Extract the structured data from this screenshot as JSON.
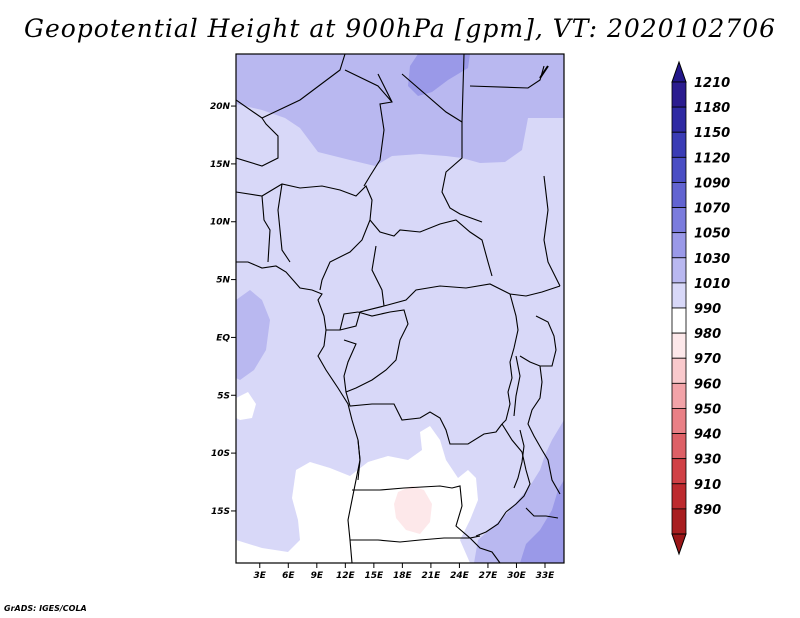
{
  "title": "Geopotential Height at 900hPa [gpm], VT: 2020102706",
  "credit": "GrADS: IGES/COLA",
  "map": {
    "lat_range": [
      -19.5,
      24.5
    ],
    "lon_range": [
      0.5,
      35.0
    ],
    "lat_ticks": [
      {
        "lat": 20,
        "label": "20N"
      },
      {
        "lat": 15,
        "label": "15N"
      },
      {
        "lat": 10,
        "label": "10N"
      },
      {
        "lat": 5,
        "label": "5N"
      },
      {
        "lat": 0,
        "label": "EQ"
      },
      {
        "lat": -5,
        "label": "5S"
      },
      {
        "lat": -10,
        "label": "10S"
      },
      {
        "lat": -15,
        "label": "15S"
      }
    ],
    "lon_ticks": [
      {
        "lon": 3,
        "label": "3E"
      },
      {
        "lon": 6,
        "label": "6E"
      },
      {
        "lon": 9,
        "label": "9E"
      },
      {
        "lon": 12,
        "label": "12E"
      },
      {
        "lon": 15,
        "label": "15E"
      },
      {
        "lon": 18,
        "label": "18E"
      },
      {
        "lon": 21,
        "label": "21E"
      },
      {
        "lon": 24,
        "label": "24E"
      },
      {
        "lon": 27,
        "label": "27E"
      },
      {
        "lon": 30,
        "label": "30E"
      },
      {
        "lon": 33,
        "label": "33E"
      }
    ]
  },
  "colorbar": {
    "levels": [
      {
        "label": "1210",
        "color": "#2b1c8f"
      },
      {
        "label": "1180",
        "color": "#2f2aa3"
      },
      {
        "label": "1150",
        "color": "#3a3cb5"
      },
      {
        "label": "1120",
        "color": "#4a4ec4"
      },
      {
        "label": "1090",
        "color": "#6264d1"
      },
      {
        "label": "1070",
        "color": "#7b7cdd"
      },
      {
        "label": "1050",
        "color": "#9a99e8"
      },
      {
        "label": "1030",
        "color": "#b9b8f0"
      },
      {
        "label": "1010",
        "color": "#d8d8f8"
      },
      {
        "label": "990",
        "color": "#ffffff"
      },
      {
        "label": "980",
        "color": "#fde8ea"
      },
      {
        "label": "970",
        "color": "#f9c9cc"
      },
      {
        "label": "960",
        "color": "#f2a3a8"
      },
      {
        "label": "950",
        "color": "#e98086"
      },
      {
        "label": "940",
        "color": "#dd6066"
      },
      {
        "label": "930",
        "color": "#d04146"
      },
      {
        "label": "910",
        "color": "#bd2a2e"
      },
      {
        "label": "890",
        "color": "#a81e20"
      }
    ],
    "top_color": "#23178a",
    "bottom_color": "#9a1618"
  },
  "colors": {
    "base_field": "#d8d8f8",
    "mid_field": "#b9b8f0",
    "high_field": "#9a99e8",
    "low_field": "#ffffff",
    "pink_field": "#fde8ea",
    "coast": "#000000"
  }
}
